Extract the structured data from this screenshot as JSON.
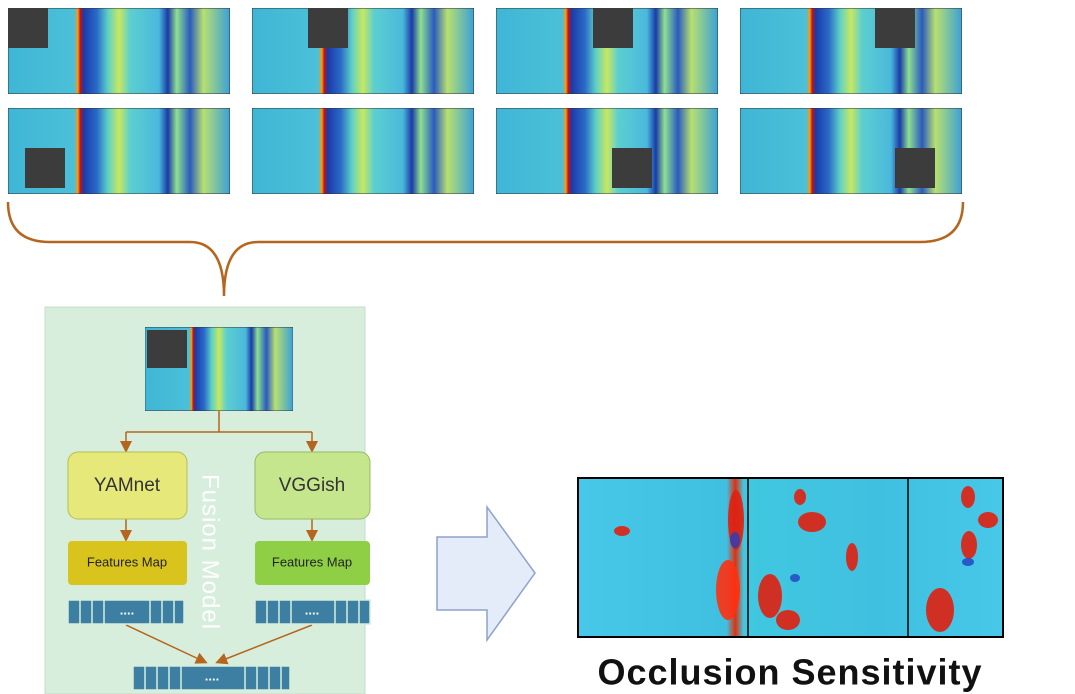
{
  "fusion_model": {
    "label": "Fusion Model",
    "branches": [
      {
        "name": "YAMnet",
        "features": "Features Map",
        "vector": "...."
      },
      {
        "name": "VGGish",
        "features": "Features Map",
        "vector": "...."
      }
    ],
    "output": "...."
  },
  "result": {
    "title": "Occlusion Sensitivity"
  }
}
